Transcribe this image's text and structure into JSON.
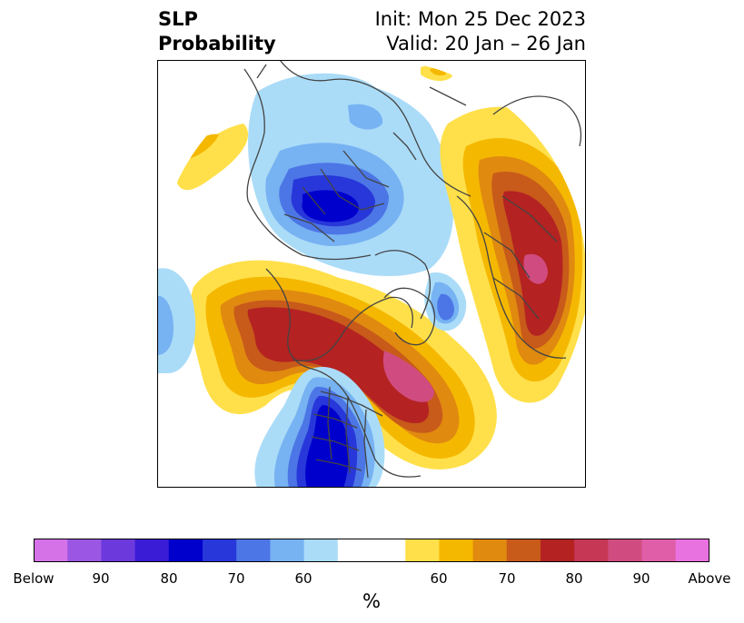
{
  "title": {
    "left_line1": "SLP",
    "left_line2": "Probability",
    "right_line1": "Init: Mon 25 Dec 2023",
    "right_line2": "Valid: 20 Jan – 26 Jan"
  },
  "colorbar": {
    "colors": [
      "#d672e8",
      "#9b56e3",
      "#6c3adc",
      "#3a1bd6",
      "#0000cc",
      "#2837d9",
      "#4c76e6",
      "#77b2f2",
      "#aadcf8",
      "#ffffff",
      "#ffffff",
      "#ffe04a",
      "#f5b800",
      "#e08a10",
      "#c85a1a",
      "#b42222",
      "#c63755",
      "#d04c80",
      "#e05ea8",
      "#e872e0"
    ],
    "tick_labels": [
      "Below",
      "90",
      "80",
      "70",
      "60",
      "60",
      "70",
      "80",
      "90",
      "Above"
    ],
    "unit": "%"
  },
  "map": {
    "projection": "north-polar-stereographic",
    "colors": {
      "above_low": "#ffe04a",
      "above_60": "#f5b800",
      "above_70": "#e08a10",
      "above_75": "#c85a1a",
      "above_80": "#b42222",
      "above_90": "#d04c80",
      "below_low": "#aadcf8",
      "below_60": "#77b2f2",
      "below_70": "#4c76e6",
      "below_75": "#2837d9",
      "below_80": "#0000cc",
      "coast": "#444444"
    }
  }
}
